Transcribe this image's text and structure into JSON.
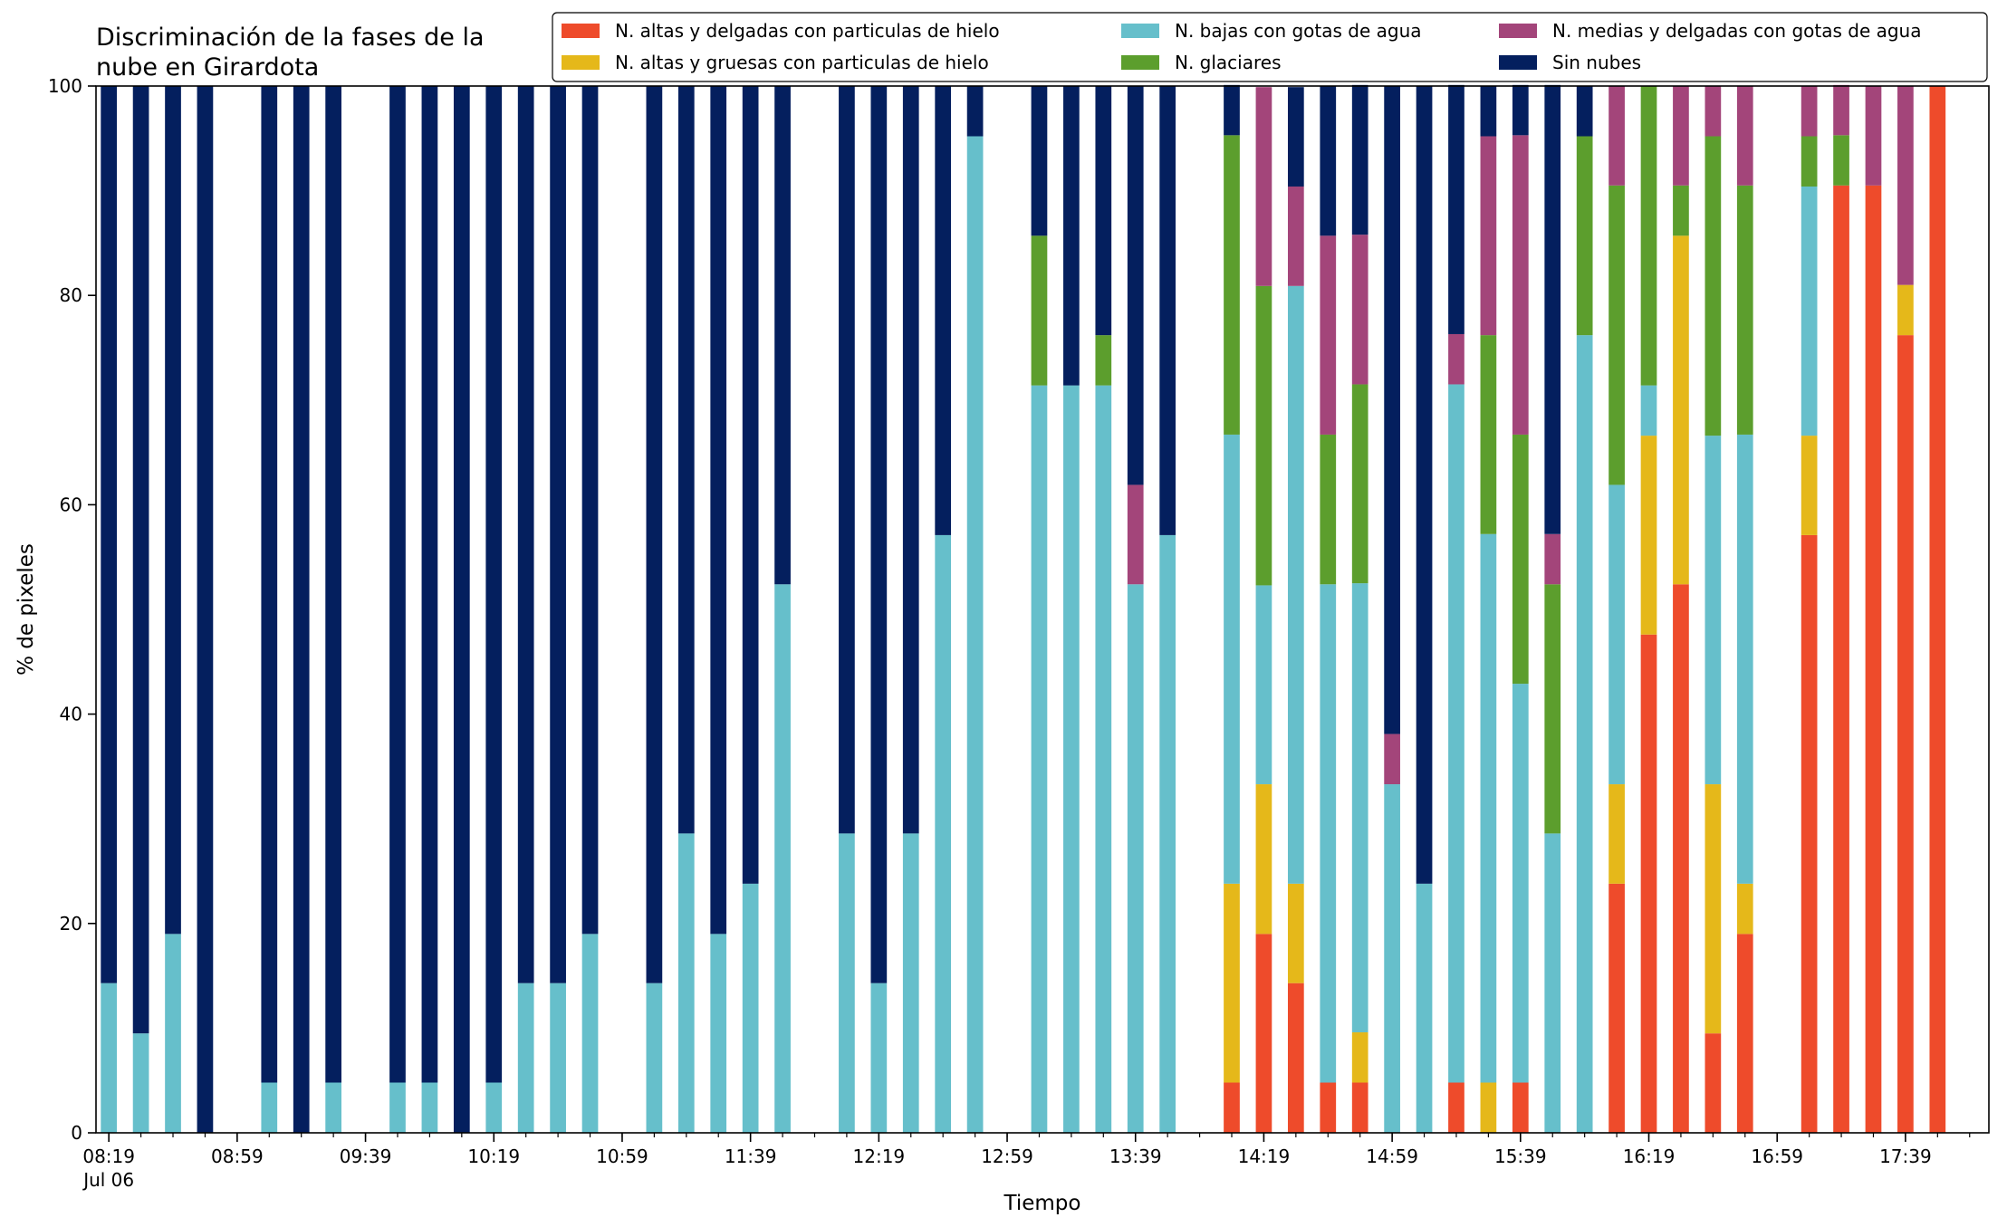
{
  "chart_data": {
    "type": "bar",
    "stacked": true,
    "title": "Discriminación de la fases de la\nnube en Girardota",
    "xlabel": "Tiempo",
    "ylabel": "% de pixeles",
    "ylim": [
      0,
      100
    ],
    "yticks": [
      0,
      20,
      40,
      60,
      80,
      100
    ],
    "x_range": [
      "08:15",
      "18:05"
    ],
    "x_ticks": [
      "08:19",
      "08:59",
      "09:39",
      "10:19",
      "10:59",
      "11:39",
      "12:19",
      "12:59",
      "13:39",
      "14:19",
      "14:59",
      "15:39",
      "16:19",
      "16:59",
      "17:39"
    ],
    "x_date_label": "Jul 06",
    "minor_tick_every_minutes": 10,
    "legend_position": "top-right",
    "grid": false,
    "times": [
      "08:19",
      "08:29",
      "08:39",
      "08:49",
      "09:09",
      "09:19",
      "09:29",
      "09:49",
      "09:59",
      "10:09",
      "10:19",
      "10:29",
      "10:39",
      "10:49",
      "11:09",
      "11:19",
      "11:29",
      "11:39",
      "11:49",
      "12:09",
      "12:19",
      "12:29",
      "12:39",
      "12:49",
      "13:09",
      "13:19",
      "13:29",
      "13:39",
      "13:49",
      "14:09",
      "14:19",
      "14:29",
      "14:39",
      "14:49",
      "14:59",
      "15:09",
      "15:19",
      "15:29",
      "15:39",
      "15:49",
      "15:59",
      "16:09",
      "16:19",
      "16:29",
      "16:39",
      "16:49",
      "17:09",
      "17:19",
      "17:29",
      "17:39",
      "17:49"
    ],
    "series": [
      {
        "name": "N. altas y delgadas con particulas de hielo",
        "color": "#ee4b2b",
        "values": [
          0,
          0,
          0,
          0,
          0,
          0,
          0,
          0,
          0,
          0,
          0,
          0,
          0,
          0,
          0,
          0,
          0,
          0,
          0,
          0,
          0,
          0,
          0,
          0,
          0,
          0,
          0,
          0,
          0,
          4.8,
          19,
          14.3,
          4.8,
          4.8,
          0,
          0,
          4.8,
          0,
          4.8,
          0,
          0,
          23.8,
          47.6,
          52.4,
          9.5,
          19,
          57.1,
          90.5,
          90.5,
          76.2,
          100
        ]
      },
      {
        "name": "N. altas y gruesas con particulas de hielo",
        "color": "#e5b81a",
        "values": [
          0,
          0,
          0,
          0,
          0,
          0,
          0,
          0,
          0,
          0,
          0,
          0,
          0,
          0,
          0,
          0,
          0,
          0,
          0,
          0,
          0,
          0,
          0,
          0,
          0,
          0,
          0,
          0,
          0,
          19,
          14.3,
          9.5,
          0,
          4.8,
          0,
          0,
          0,
          4.8,
          0,
          0,
          0,
          9.5,
          19,
          33.3,
          23.8,
          4.8,
          9.5,
          0,
          0,
          4.8,
          0
        ]
      },
      {
        "name": "N. bajas con gotas de agua",
        "color": "#66bfcb",
        "values": [
          14.3,
          9.5,
          19,
          0,
          4.8,
          0,
          4.8,
          4.8,
          4.8,
          0,
          4.8,
          14.3,
          14.3,
          19,
          14.3,
          28.6,
          19,
          23.8,
          52.4,
          28.6,
          14.3,
          28.6,
          57.1,
          95.2,
          71.4,
          71.4,
          71.4,
          52.4,
          57.1,
          42.9,
          19,
          57.1,
          47.6,
          42.9,
          33.3,
          23.8,
          66.7,
          52.4,
          38.1,
          28.6,
          76.2,
          28.6,
          4.8,
          0,
          33.3,
          42.9,
          23.8,
          0,
          0,
          0,
          0
        ]
      },
      {
        "name": "N. glaciares",
        "color": "#5c9e2d",
        "values": [
          0,
          0,
          0,
          0,
          0,
          0,
          0,
          0,
          0,
          0,
          0,
          0,
          0,
          0,
          0,
          0,
          0,
          0,
          0,
          0,
          0,
          0,
          0,
          0,
          14.3,
          0,
          4.8,
          0,
          0,
          28.6,
          28.6,
          0,
          14.3,
          19,
          0,
          0,
          0,
          19,
          23.8,
          23.8,
          19,
          28.6,
          28.6,
          4.8,
          28.6,
          23.8,
          4.8,
          4.8,
          0,
          0,
          0
        ]
      },
      {
        "name": "N. medias y delgadas con gotas de agua",
        "color": "#a3457a",
        "values": [
          0,
          0,
          0,
          0,
          0,
          0,
          0,
          0,
          0,
          0,
          0,
          0,
          0,
          0,
          0,
          0,
          0,
          0,
          0,
          0,
          0,
          0,
          0,
          0,
          0,
          0,
          0,
          9.5,
          0,
          0,
          19,
          9.5,
          19,
          14.3,
          4.8,
          0,
          4.8,
          19,
          28.6,
          4.8,
          0,
          9.5,
          0,
          9.5,
          4.8,
          9.5,
          4.8,
          4.8,
          9.5,
          19,
          0
        ]
      },
      {
        "name": "Sin nubes",
        "color": "#041f5e",
        "values": [
          85.7,
          90.5,
          81,
          100,
          95.2,
          100,
          95.2,
          95.2,
          95.2,
          100,
          95.2,
          85.7,
          85.7,
          81,
          85.7,
          71.4,
          81,
          76.2,
          47.6,
          71.4,
          85.7,
          71.4,
          42.9,
          4.8,
          14.3,
          28.6,
          23.8,
          38.1,
          42.9,
          4.8,
          0,
          9.5,
          14.3,
          14.3,
          61.9,
          76.2,
          23.8,
          4.8,
          4.8,
          42.9,
          4.8,
          0,
          0,
          0,
          0,
          0,
          0,
          0,
          0,
          0,
          0
        ]
      }
    ]
  }
}
